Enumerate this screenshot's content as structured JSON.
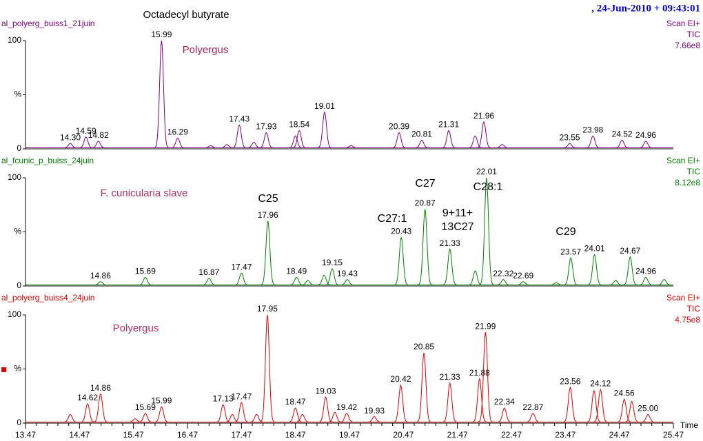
{
  "header": ", 24-Jun-2010 + 09:43:01",
  "chart_data": [
    {
      "type": "line",
      "title": "al_polyerg_buiss1_21juin",
      "scan": "Scan EI+",
      "signal": "TIC",
      "scale": "7.66e8",
      "color": "#800080",
      "annotations": [
        "Octadecyl butyrate",
        "Polyergus"
      ],
      "xlim": [
        13.47,
        25.47
      ],
      "ylim": [
        0,
        100
      ],
      "yticks": [
        0,
        {
          "value": 50,
          "label": "%"
        },
        100
      ],
      "peaks": {
        "x": [
          14.3,
          14.59,
          14.82,
          15.99,
          16.29,
          16.9,
          17.2,
          17.43,
          17.7,
          17.93,
          18.47,
          18.54,
          19.01,
          19.5,
          20.39,
          20.81,
          21.31,
          21.8,
          21.96,
          22.3,
          23.55,
          23.98,
          24.52,
          24.96
        ],
        "values": [
          5,
          11,
          7,
          100,
          10,
          3,
          4,
          22,
          6,
          15,
          12,
          17,
          34,
          3,
          15,
          8,
          17,
          12,
          25,
          4,
          5,
          12,
          8,
          7
        ],
        "value_labels": [
          "14.30",
          "14.59",
          "14.82",
          "15.99",
          "16.29",
          null,
          null,
          "17.43",
          null,
          "17.93",
          null,
          "18.54",
          "19.01",
          null,
          "20.39",
          "20.81",
          "21.31",
          null,
          "21.96",
          null,
          "23.55",
          "23.98",
          "24.52",
          "24.96"
        ]
      }
    },
    {
      "type": "line",
      "title": "al_fcunic_p_buiss_24juin",
      "scan": "Scan EI+",
      "signal": "TIC",
      "scale": "8.12e8",
      "color": "#008000",
      "annotations": [
        "F. cunicularia slave",
        "C25",
        "C27:1",
        "C27",
        "9+11+",
        "13C27",
        "C28:1",
        "C29"
      ],
      "xlim": [
        13.47,
        25.47
      ],
      "ylim": [
        0,
        100
      ],
      "yticks": [
        0,
        {
          "value": 50,
          "label": "%"
        },
        100
      ],
      "peaks": {
        "x": [
          14.86,
          15.69,
          16.87,
          17.47,
          17.96,
          18.49,
          18.7,
          19.0,
          19.15,
          19.43,
          20.43,
          20.87,
          21.33,
          21.8,
          22.01,
          22.32,
          22.69,
          23.3,
          23.57,
          24.01,
          24.4,
          24.67,
          24.96,
          25.3
        ],
        "values": [
          4,
          8,
          7,
          12,
          60,
          8,
          5,
          10,
          16,
          6,
          45,
          71,
          34,
          14,
          100,
          6,
          4,
          3,
          26,
          29,
          5,
          27,
          8,
          6
        ],
        "value_labels": [
          "14.86",
          "15.69",
          "16.87",
          "17.47",
          "17.96",
          "18.49",
          null,
          null,
          "19.15",
          "19.43",
          "20.43",
          "20.87",
          "21.33",
          null,
          "22.01",
          "22.32",
          "22.69",
          null,
          "23.57",
          "24.01",
          null,
          "24.67",
          "24.96",
          null
        ]
      }
    },
    {
      "type": "line",
      "title": "al_polyerg_buiss4_24juin",
      "scan": "Scan EI+",
      "signal": "TIC",
      "scale": "4.75e8",
      "color": "#e00000",
      "annotations": [
        "Polyergus"
      ],
      "xlabel": "Time",
      "xlim": [
        13.47,
        25.47
      ],
      "ylim": [
        0,
        100
      ],
      "xticks": [
        13.47,
        14.47,
        15.47,
        16.47,
        17.47,
        18.47,
        19.47,
        20.47,
        21.47,
        22.47,
        23.47,
        24.47,
        25.47
      ],
      "yticks": [
        0,
        {
          "value": 50,
          "label": "%"
        },
        100
      ],
      "peaks": {
        "x": [
          14.3,
          14.62,
          14.86,
          15.5,
          15.69,
          15.99,
          17.13,
          17.3,
          17.47,
          17.75,
          17.95,
          18.47,
          18.6,
          19.03,
          19.2,
          19.42,
          19.93,
          20.42,
          20.85,
          21.33,
          21.88,
          21.99,
          22.34,
          22.87,
          23.56,
          24.0,
          24.12,
          24.56,
          24.7,
          25.0
        ],
        "values": [
          8,
          18,
          27,
          4,
          9,
          15,
          17,
          8,
          19,
          8,
          100,
          14,
          8,
          24,
          10,
          9,
          6,
          35,
          65,
          37,
          41,
          84,
          14,
          9,
          33,
          30,
          31,
          22,
          20,
          8
        ],
        "value_labels": [
          null,
          "14.62",
          "14.86",
          null,
          "15.69",
          "15.99",
          "17.13",
          null,
          "17.47",
          null,
          "17.95",
          "18.47",
          null,
          "19.03",
          null,
          "19.42",
          "19.93",
          "20.42",
          "20.85",
          "21.33",
          "21.88",
          "21.99",
          "22.34",
          "22.87",
          "23.56",
          null,
          "24.12",
          "24.56",
          null,
          "25.00"
        ]
      }
    }
  ]
}
